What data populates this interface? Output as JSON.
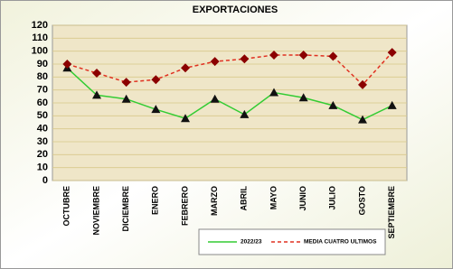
{
  "chart_data": {
    "type": "line",
    "title": "EXPORTACIONES",
    "categories": [
      "OCTUBRE",
      "NOVIEMBRE",
      "DICIEMBRE",
      "ENERO",
      "FEBRERO",
      "MARZO",
      "ABRIL",
      "MAYO",
      "JUNIO",
      "JULIO",
      "GOSTO",
      "SEPTIEMBRE"
    ],
    "series": [
      {
        "name": "2022/23",
        "color": "#33cc33",
        "values": [
          87,
          66,
          63,
          55,
          48,
          63,
          51,
          68,
          64,
          58,
          47,
          58
        ]
      },
      {
        "name": "MEDIA CUATRO ULTIMOS",
        "color": "#e03020",
        "values": [
          90,
          83,
          76,
          78,
          87,
          92,
          94,
          97,
          97,
          96,
          74,
          99
        ]
      }
    ],
    "ylim": [
      0,
      120
    ],
    "yticks": [
      0,
      10,
      20,
      30,
      40,
      50,
      60,
      70,
      80,
      90,
      100,
      110,
      120
    ],
    "grid": true
  }
}
